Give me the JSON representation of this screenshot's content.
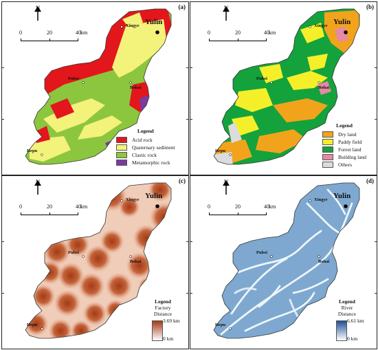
{
  "panels": {
    "a": {
      "tag": "(a)",
      "legend_title": "Legend",
      "legend_items": [
        {
          "label": "Acid rock",
          "color": "#e3161c"
        },
        {
          "label": "Quaternary sediment",
          "color": "#f3f27a"
        },
        {
          "label": "Clastic rock",
          "color": "#8cc63e"
        },
        {
          "label": "Metamorphic rock",
          "color": "#7b3aa0"
        }
      ]
    },
    "b": {
      "tag": "(b)",
      "legend_title": "Legend",
      "legend_items": [
        {
          "label": "Dry land",
          "color": "#f2a31c"
        },
        {
          "label": "Paddy field",
          "color": "#f5ef2a"
        },
        {
          "label": "Forest land",
          "color": "#14a23c"
        },
        {
          "label": "Building land",
          "color": "#e58aa3"
        },
        {
          "label": "Others",
          "color": "#dcdcdc"
        }
      ]
    },
    "c": {
      "tag": "(c)",
      "legend_title": "Legend",
      "legend_sub": "Factory",
      "legend_sub2": "Distance",
      "max_label": "3.69 km",
      "min_label": "0 km",
      "colors": {
        "low": "#a33b16",
        "high": "#ffffff"
      }
    },
    "d": {
      "tag": "(d)",
      "legend_title": "Legend",
      "legend_sub": "River",
      "legend_sub2": "Distance",
      "max_label": "6.61 km",
      "min_label": "0 km",
      "colors": {
        "low": "#ffffff",
        "high": "#1f4f95"
      }
    }
  },
  "north_label": "N",
  "scale": {
    "ticks": [
      "0",
      "20",
      "40"
    ],
    "unit": "km"
  },
  "places": {
    "yulin": "Yulin",
    "xingye": "Xingye",
    "pubei": "Pubei",
    "bohai": "Bohai",
    "hepu": "Hepu"
  }
}
